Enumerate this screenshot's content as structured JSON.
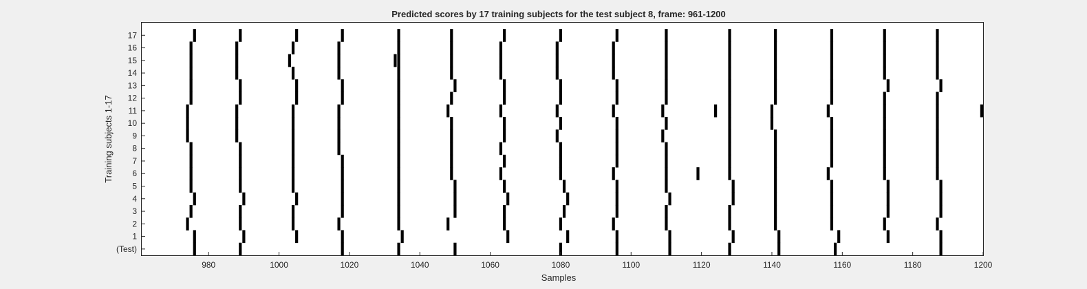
{
  "chart_data": {
    "type": "heatmap",
    "title": "Predicted scores by 17 training subjects for the test subject 8, frame: 961-1200",
    "xlabel": "Samples",
    "ylabel": "Training subjects 1-17",
    "xlim": [
      961,
      1200
    ],
    "x_ticks": [
      980,
      1000,
      1020,
      1040,
      1060,
      1080,
      1100,
      1120,
      1140,
      1160,
      1180,
      1200
    ],
    "y_categories": [
      "(Test)",
      "1",
      "2",
      "3",
      "4",
      "5",
      "6",
      "7",
      "8",
      "9",
      "10",
      "11",
      "12",
      "13",
      "14",
      "15",
      "16",
      "17"
    ],
    "colors": {
      "background": "#ffffff",
      "mark": "#000000",
      "axis": "#262626",
      "figure": "#f0f0f0"
    },
    "grid": false,
    "series": [
      {
        "row": "(Test)",
        "x": [
          976,
          989,
          1018,
          1034,
          1050,
          1080,
          1096,
          1111,
          1128,
          1142,
          1158,
          1188
        ]
      },
      {
        "row": "1",
        "x": [
          976,
          990,
          1005,
          1018,
          1035,
          1065,
          1082,
          1096,
          1111,
          1129,
          1142,
          1159,
          1173,
          1188
        ]
      },
      {
        "row": "2",
        "x": [
          974,
          989,
          1004,
          1017,
          1034,
          1048,
          1064,
          1080,
          1095,
          1110,
          1128,
          1141,
          1157,
          1172,
          1187
        ]
      },
      {
        "row": "3",
        "x": [
          975,
          989,
          1004,
          1018,
          1034,
          1050,
          1064,
          1081,
          1096,
          1110,
          1128,
          1141,
          1157,
          1173,
          1188
        ]
      },
      {
        "row": "4",
        "x": [
          976,
          990,
          1005,
          1018,
          1034,
          1050,
          1065,
          1082,
          1096,
          1111,
          1129,
          1141,
          1157,
          1173,
          1188
        ]
      },
      {
        "row": "5",
        "x": [
          975,
          989,
          1004,
          1018,
          1034,
          1050,
          1064,
          1081,
          1096,
          1110,
          1129,
          1141,
          1157,
          1173,
          1188
        ]
      },
      {
        "row": "6",
        "x": [
          975,
          989,
          1004,
          1018,
          1034,
          1049,
          1063,
          1080,
          1095,
          1110,
          1119,
          1128,
          1141,
          1156,
          1172,
          1187
        ]
      },
      {
        "row": "7",
        "x": [
          975,
          989,
          1004,
          1018,
          1034,
          1049,
          1064,
          1080,
          1096,
          1110,
          1128,
          1141,
          1157,
          1172,
          1187
        ]
      },
      {
        "row": "8",
        "x": [
          975,
          989,
          1004,
          1017,
          1034,
          1049,
          1063,
          1080,
          1096,
          1110,
          1128,
          1141,
          1157,
          1172,
          1187
        ]
      },
      {
        "row": "9",
        "x": [
          974,
          988,
          1004,
          1017,
          1034,
          1049,
          1064,
          1079,
          1096,
          1109,
          1128,
          1141,
          1157,
          1172,
          1187
        ]
      },
      {
        "row": "10",
        "x": [
          974,
          988,
          1004,
          1017,
          1034,
          1049,
          1064,
          1080,
          1096,
          1110,
          1128,
          1140,
          1157,
          1172,
          1187
        ]
      },
      {
        "row": "11",
        "x": [
          974,
          988,
          1004,
          1017,
          1034,
          1048,
          1063,
          1079,
          1095,
          1109,
          1124,
          1128,
          1140,
          1156,
          1172,
          1187,
          1200
        ]
      },
      {
        "row": "12",
        "x": [
          975,
          989,
          1005,
          1018,
          1034,
          1049,
          1064,
          1080,
          1096,
          1110,
          1128,
          1141,
          1157,
          1172,
          1187
        ]
      },
      {
        "row": "13",
        "x": [
          975,
          989,
          1005,
          1018,
          1034,
          1050,
          1064,
          1080,
          1096,
          1110,
          1128,
          1141,
          1157,
          1173,
          1188
        ]
      },
      {
        "row": "14",
        "x": [
          975,
          988,
          1004,
          1017,
          1034,
          1049,
          1063,
          1079,
          1095,
          1110,
          1128,
          1141,
          1157,
          1172,
          1187
        ]
      },
      {
        "row": "15",
        "x": [
          975,
          988,
          1003,
          1017,
          1033,
          1034,
          1049,
          1063,
          1079,
          1095,
          1110,
          1128,
          1141,
          1157,
          1172,
          1187
        ]
      },
      {
        "row": "16",
        "x": [
          975,
          988,
          1004,
          1017,
          1034,
          1049,
          1063,
          1079,
          1095,
          1110,
          1128,
          1141,
          1157,
          1172,
          1187
        ]
      },
      {
        "row": "17",
        "x": [
          976,
          989,
          1005,
          1018,
          1034,
          1049,
          1064,
          1080,
          1096,
          1110,
          1128,
          1141,
          1157,
          1172,
          1187
        ]
      }
    ]
  }
}
